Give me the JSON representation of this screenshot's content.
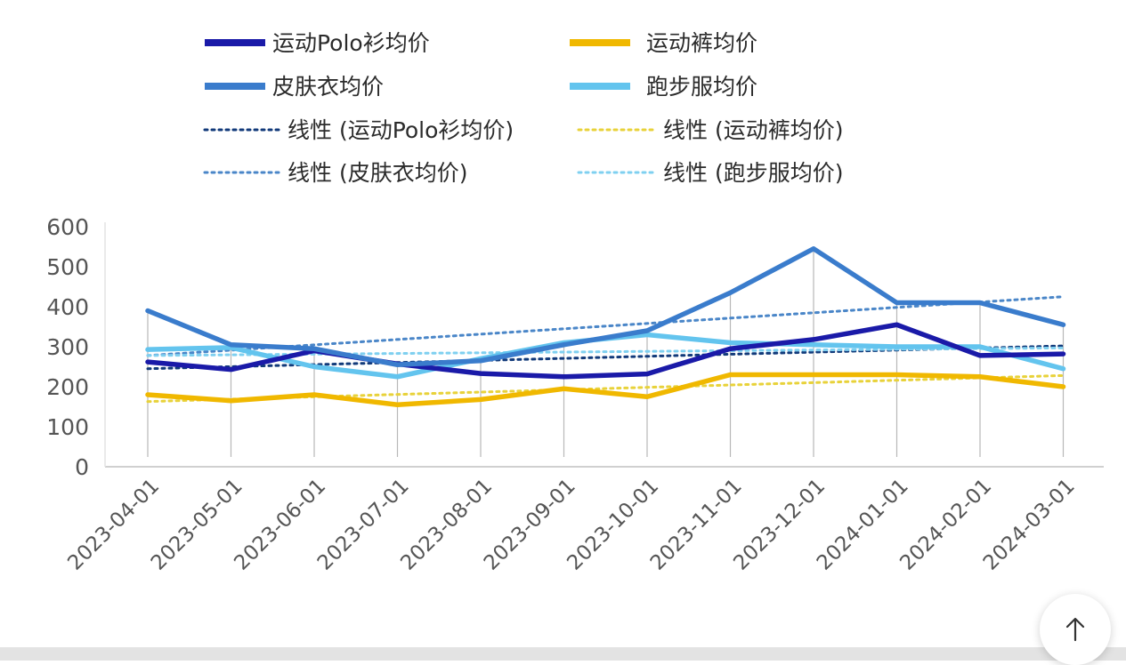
{
  "chart_data": {
    "type": "line",
    "title": "",
    "xlabel": "",
    "ylabel": "",
    "categories": [
      "2023-04-01",
      "2023-05-01",
      "2023-06-01",
      "2023-07-01",
      "2023-08-01",
      "2023-09-01",
      "2023-10-01",
      "2023-11-01",
      "2023-12-01",
      "2024-01-01",
      "2024-02-01",
      "2024-03-01"
    ],
    "y_ticks": [
      "0",
      "100",
      "200",
      "300",
      "400",
      "500",
      "600"
    ],
    "ylim": [
      0,
      600
    ],
    "grid": "vertical drop lines",
    "legend_placement": "top",
    "series": [
      {
        "name": "运动Polo衫均价",
        "color": "#1a1aa8",
        "values": [
          262,
          243,
          290,
          257,
          233,
          225,
          232,
          295,
          318,
          355,
          278,
          282
        ]
      },
      {
        "name": "运动裤均价",
        "color": "#f0b800",
        "values": [
          180,
          165,
          180,
          155,
          168,
          195,
          175,
          230,
          230,
          230,
          225,
          200
        ]
      },
      {
        "name": "皮肤衣均价",
        "color": "#3a7ccc",
        "values": [
          390,
          305,
          295,
          255,
          265,
          305,
          340,
          435,
          545,
          410,
          410,
          355
        ]
      },
      {
        "name": "跑步服均价",
        "color": "#63c4ee",
        "values": [
          293,
          298,
          250,
          225,
          270,
          310,
          330,
          310,
          305,
          300,
          300,
          245
        ]
      }
    ],
    "trendlines": [
      {
        "name": "线性 (运动Polo衫均价)",
        "color": "#123a7a",
        "start": 245,
        "end": 302
      },
      {
        "name": "线性 (运动裤均价)",
        "color": "#e8d23a",
        "start": 163,
        "end": 228
      },
      {
        "name": "线性 (皮肤衣均价)",
        "color": "#4a86c8",
        "start": 278,
        "end": 425
      },
      {
        "name": "线性 (跑步服均价)",
        "color": "#7fd0f0",
        "start": 278,
        "end": 297
      }
    ]
  }
}
